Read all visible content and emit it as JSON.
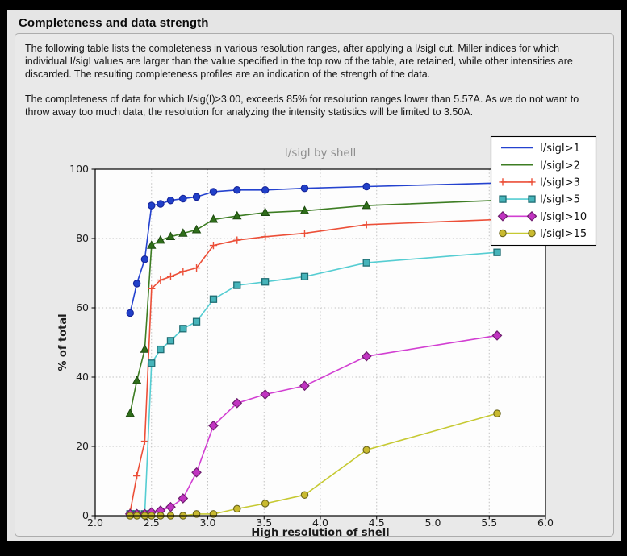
{
  "header": {
    "title": "Completeness and data strength"
  },
  "paragraphs": {
    "p1": "The following table lists the completeness in various resolution ranges, after applying a I/sigI cut. Miller indices for which individual I/sigI values are larger than the value specified in the top row of the table, are retained, while other intensities are discarded. The resulting completeness profiles are an indication of the strength of the data.",
    "p2": "The completeness of data for which I/sig(I)>3.00, exceeds  85% for resolution ranges lower than 5.57A. As we do not want to throw away too much data, the resolution for analyzing the intensity statistics will be limited to 3.50A."
  },
  "chart_data": {
    "type": "line",
    "title": "I/sigI by shell",
    "xlabel": "High resolution of shell",
    "ylabel": "% of total",
    "xlim": [
      2.0,
      6.0
    ],
    "ylim": [
      0,
      100
    ],
    "xticks": [
      "2.0",
      "2.5",
      "3.0",
      "3.5",
      "4.0",
      "4.5",
      "5.0",
      "5.5",
      "6.0"
    ],
    "yticks": [
      "0",
      "20",
      "40",
      "60",
      "80",
      "100"
    ],
    "grid": true,
    "legend_position": "upper right",
    "x": [
      2.31,
      2.37,
      2.44,
      2.5,
      2.58,
      2.67,
      2.78,
      2.9,
      3.05,
      3.26,
      3.51,
      3.86,
      4.41,
      5.57
    ],
    "series": [
      {
        "name": "I/sigI>1",
        "color": "#2442cf",
        "marker": "circle",
        "marker_fill": "#2140c9",
        "marker_edge": "#16249a",
        "legend_marker": false,
        "values": [
          58.5,
          67,
          74,
          89.5,
          90,
          91,
          91.5,
          92,
          93.5,
          94,
          94,
          94.5,
          95,
          96
        ]
      },
      {
        "name": "I/sigI>2",
        "color": "#3d7d23",
        "marker": "triangle",
        "marker_fill": "#2f6e1a",
        "marker_edge": "#1d4a10",
        "legend_marker": false,
        "values": [
          29.5,
          39,
          48,
          78,
          79.5,
          80.5,
          81.5,
          82.5,
          85.5,
          86.5,
          87.5,
          88,
          89.5,
          91
        ]
      },
      {
        "name": "I/sigI>3",
        "color": "#ec4f38",
        "marker": "plus",
        "marker_fill": "#ec4f38",
        "marker_edge": "#ec4f38",
        "legend_marker": true,
        "values": [
          1,
          11.5,
          21.5,
          65.5,
          68,
          69,
          70.5,
          71.5,
          78,
          79.5,
          80.5,
          81.5,
          84,
          85.5
        ]
      },
      {
        "name": "I/sigI>5",
        "color": "#55cdd2",
        "marker": "square",
        "marker_fill": "#46b4ba",
        "marker_edge": "#1f6d73",
        "legend_marker": true,
        "values": [
          0.5,
          0.5,
          0.5,
          44,
          48,
          50.5,
          54,
          56,
          62.5,
          66.5,
          67.5,
          69,
          73,
          76
        ]
      },
      {
        "name": "I/sigI>10",
        "color": "#d23fd2",
        "marker": "diamond",
        "marker_fill": "#c133c1",
        "marker_edge": "#6e1d6e",
        "legend_marker": true,
        "values": [
          0.5,
          0.5,
          0.5,
          1,
          1.5,
          2.5,
          5,
          12.5,
          26,
          32.5,
          35,
          37.5,
          46,
          52
        ]
      },
      {
        "name": "I/sigI>15",
        "color": "#c6c932",
        "marker": "circle",
        "marker_fill": "#c9ba2f",
        "marker_edge": "#6b661c",
        "legend_marker": true,
        "values": [
          0,
          0,
          0,
          0,
          0,
          0,
          0,
          0.5,
          0.5,
          2,
          3.5,
          6,
          19,
          29.5
        ]
      }
    ]
  }
}
